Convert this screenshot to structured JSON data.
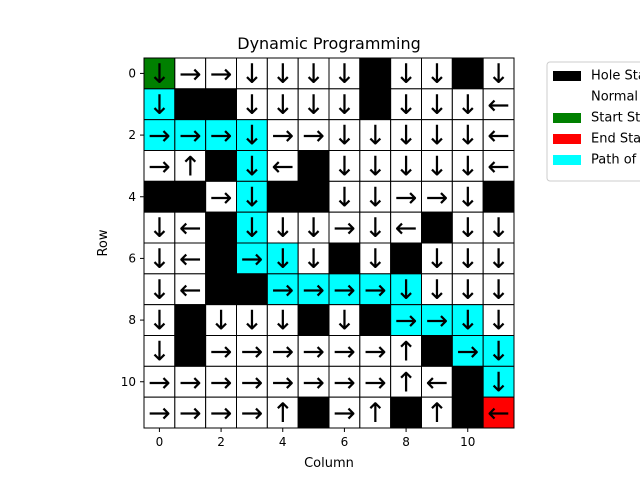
{
  "chart_data": {
    "type": "heatmap",
    "title": "Dynamic Programming",
    "xlabel": "Column",
    "ylabel": "Row",
    "x_ticks": [
      "0",
      "2",
      "4",
      "6",
      "8",
      "10"
    ],
    "y_ticks": [
      "0",
      "2",
      "4",
      "6",
      "8",
      "10"
    ],
    "rows": 12,
    "cols": 12,
    "colors": {
      "hole": "#000000",
      "normal": "#ffffff",
      "start": "#008000",
      "end": "#ff0000",
      "path": "#00ffff"
    },
    "arrow_glyphs": {
      "U": "↑",
      "D": "↓",
      "L": "←",
      "R": "→"
    },
    "cell_types": [
      "SNNNNNNHNNHN",
      "PHHNNNNHNNNN",
      "PPPPNNNNNNNN",
      "NNHPNHNNNNNN",
      "HHNPHHNNNNNH",
      "NNHPNNNNNHNN",
      "NNHPPNHNHNNN",
      "NNHHPPPPPNNN",
      "NHNNNHNHPPPN",
      "NHNNNNNNNHPP",
      "NNNNNNNNNNHP",
      "NNNNNHNNHNHE"
    ],
    "arrows": [
      "DRRDDDD.DD.D",
      "D..DDDD.DDDL",
      "RRRDRRDDDDDL",
      "RU.DL.DDDDDL",
      "..RD..DDRRD.",
      "DL.DDDRDL.DD",
      "DL.RDD.D.DDD",
      "DL..RRRRDDDD",
      "D.DDD.D.RRDD",
      "D.RRRRRRU.RD",
      "RRRRRRRRUL.D",
      "RRRRU.RU.U.L"
    ],
    "legend": {
      "placement": "outside-right",
      "entries": [
        {
          "label": "Hole State",
          "color": "#000000"
        },
        {
          "label": "Normal State",
          "color": "#ffffff"
        },
        {
          "label": "Start State",
          "color": "#008000"
        },
        {
          "label": "End State",
          "color": "#ff0000"
        },
        {
          "label": "Path of Agent",
          "color": "#00ffff"
        }
      ]
    }
  }
}
